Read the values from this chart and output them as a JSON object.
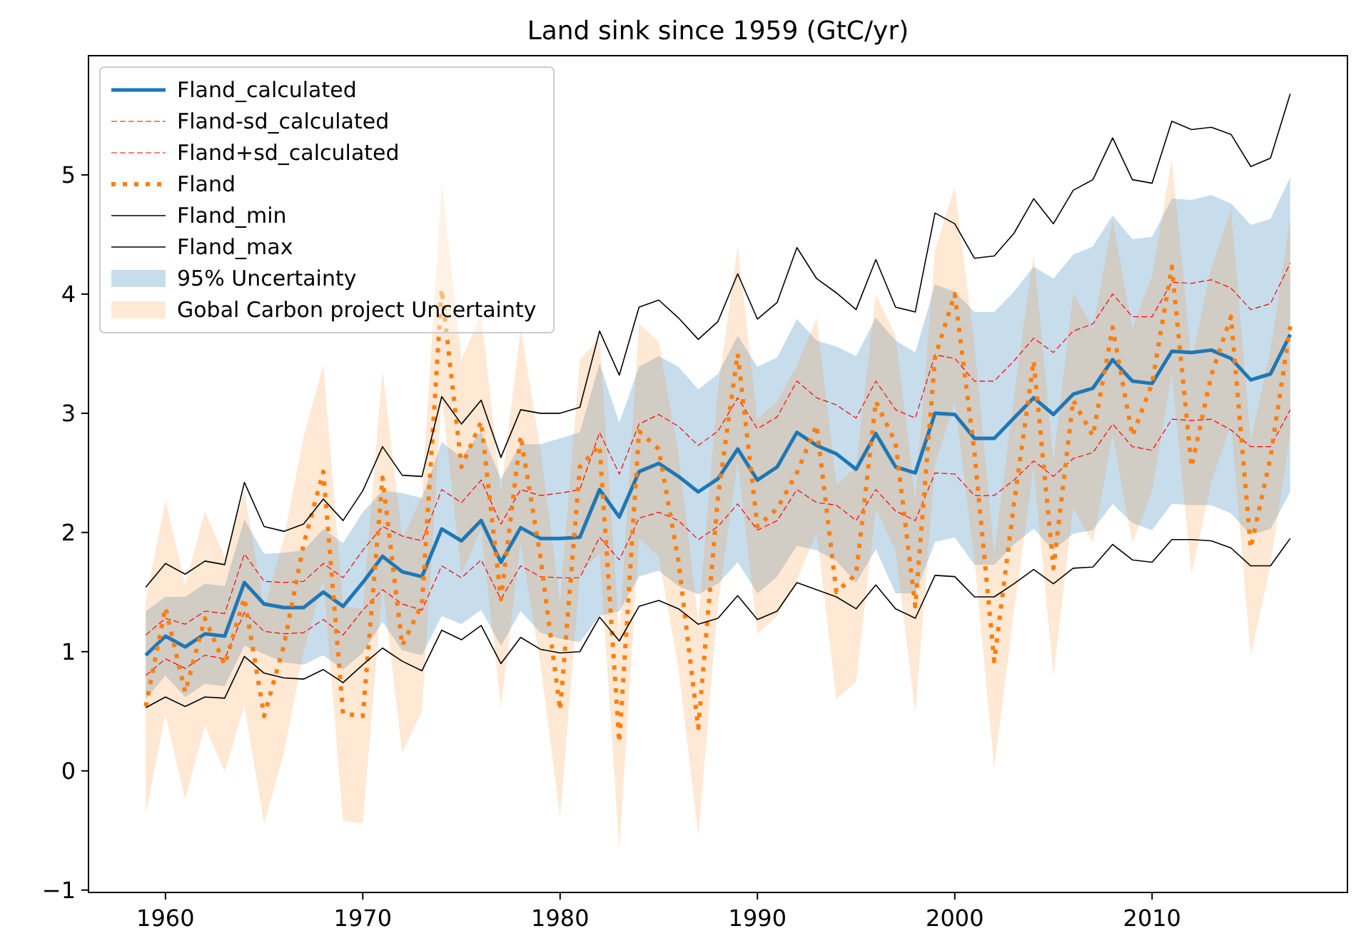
{
  "chart_data": {
    "type": "line",
    "title": "Land sink since 1959 (GtC/yr)",
    "x": [
      1959,
      1960,
      1961,
      1962,
      1963,
      1964,
      1965,
      1966,
      1967,
      1968,
      1969,
      1970,
      1971,
      1972,
      1973,
      1974,
      1975,
      1976,
      1977,
      1978,
      1979,
      1980,
      1981,
      1982,
      1983,
      1984,
      1985,
      1986,
      1987,
      1988,
      1989,
      1990,
      1991,
      1992,
      1993,
      1994,
      1995,
      1996,
      1997,
      1998,
      1999,
      2000,
      2001,
      2002,
      2003,
      2004,
      2005,
      2006,
      2007,
      2008,
      2009,
      2010,
      2011,
      2012,
      2013,
      2014,
      2015,
      2016,
      2017
    ],
    "xlim": [
      1956.1,
      2019.9
    ],
    "xticks": [
      1960,
      1970,
      1980,
      1990,
      2000,
      2010
    ],
    "ylim": [
      -1.02,
      6.0
    ],
    "yticks": [
      {
        "value": -1,
        "label": "−1"
      },
      0,
      1,
      2,
      3,
      4,
      5
    ],
    "legend": "top left",
    "annotations": [
      "95% Uncertainty",
      "Gobal Carbon project Uncertainty"
    ],
    "series": [
      {
        "name": "Fland_calculated",
        "color": "#1f77b4",
        "line_style": "solid",
        "values": [
          0.97,
          1.13,
          1.04,
          1.15,
          1.13,
          1.58,
          1.4,
          1.37,
          1.37,
          1.5,
          1.38,
          1.58,
          1.8,
          1.67,
          1.63,
          2.03,
          1.93,
          2.1,
          1.75,
          2.04,
          1.95,
          1.95,
          1.96,
          2.36,
          2.13,
          2.51,
          2.58,
          2.47,
          2.34,
          2.45,
          2.7,
          2.44,
          2.55,
          2.84,
          2.73,
          2.66,
          2.53,
          2.83,
          2.55,
          2.5,
          3.0,
          2.99,
          2.79,
          2.79,
          2.96,
          3.13,
          2.99,
          3.16,
          3.21,
          3.45,
          3.27,
          3.25,
          3.52,
          3.51,
          3.53,
          3.46,
          3.28,
          3.33,
          3.66
        ],
        "lower": [
          0.6,
          0.8,
          0.62,
          0.73,
          0.71,
          1.05,
          0.98,
          0.91,
          0.89,
          0.97,
          0.85,
          0.99,
          1.25,
          1.01,
          0.97,
          1.3,
          1.23,
          1.35,
          1.05,
          1.34,
          1.16,
          1.11,
          1.08,
          1.3,
          1.34,
          1.63,
          1.68,
          1.55,
          1.48,
          1.57,
          1.75,
          1.49,
          1.63,
          1.89,
          1.85,
          1.76,
          1.58,
          1.86,
          1.49,
          1.49,
          1.92,
          1.96,
          1.73,
          1.73,
          1.9,
          2.03,
          1.85,
          1.99,
          2.02,
          2.24,
          2.08,
          2.02,
          2.24,
          2.23,
          2.23,
          2.16,
          1.98,
          2.03,
          2.34
        ],
        "upper": [
          1.34,
          1.46,
          1.46,
          1.57,
          1.55,
          2.11,
          1.82,
          1.83,
          1.85,
          2.03,
          1.91,
          2.17,
          2.35,
          2.33,
          2.29,
          2.76,
          2.63,
          2.85,
          2.45,
          2.74,
          2.74,
          2.79,
          2.84,
          3.42,
          2.92,
          3.39,
          3.48,
          3.39,
          3.2,
          3.33,
          3.65,
          3.39,
          3.47,
          3.79,
          3.61,
          3.56,
          3.48,
          3.8,
          3.61,
          3.51,
          4.08,
          4.02,
          3.85,
          3.85,
          4.02,
          4.23,
          4.13,
          4.33,
          4.4,
          4.66,
          4.46,
          4.48,
          4.8,
          4.79,
          4.83,
          4.76,
          4.58,
          4.63,
          4.98
        ]
      },
      {
        "name": "Fland-sd_calculated",
        "color": "#ff0000",
        "line_style": "dashed",
        "values": [
          0.8,
          0.94,
          0.86,
          0.97,
          0.94,
          1.33,
          1.17,
          1.15,
          1.16,
          1.27,
          1.14,
          1.35,
          1.52,
          1.4,
          1.35,
          1.72,
          1.62,
          1.77,
          1.44,
          1.72,
          1.63,
          1.62,
          1.62,
          1.96,
          1.77,
          2.12,
          2.17,
          2.1,
          1.94,
          2.05,
          2.24,
          2.02,
          2.1,
          2.36,
          2.25,
          2.23,
          2.1,
          2.36,
          2.18,
          2.1,
          2.5,
          2.49,
          2.31,
          2.31,
          2.44,
          2.6,
          2.47,
          2.62,
          2.67,
          2.91,
          2.72,
          2.69,
          2.95,
          2.94,
          2.95,
          2.86,
          2.72,
          2.72,
          3.03
        ]
      },
      {
        "name": "Fland+sd_calculated",
        "color": "#ff0000",
        "line_style": "dashed",
        "values": [
          1.14,
          1.28,
          1.23,
          1.34,
          1.32,
          1.82,
          1.59,
          1.58,
          1.59,
          1.74,
          1.62,
          1.85,
          2.05,
          1.97,
          1.93,
          2.36,
          2.25,
          2.44,
          2.07,
          2.36,
          2.31,
          2.33,
          2.36,
          2.84,
          2.49,
          2.91,
          2.99,
          2.89,
          2.73,
          2.85,
          3.13,
          2.87,
          2.97,
          3.27,
          3.13,
          3.07,
          2.96,
          3.27,
          3.03,
          2.96,
          3.49,
          3.46,
          3.27,
          3.27,
          3.44,
          3.63,
          3.51,
          3.69,
          3.75,
          4.0,
          3.81,
          3.81,
          4.1,
          4.09,
          4.12,
          4.05,
          3.87,
          3.92,
          4.26
        ]
      },
      {
        "name": "Fland",
        "color": "#ff7f0e",
        "line_style": "dotted",
        "values": [
          0.54,
          1.37,
          0.66,
          1.28,
          0.89,
          1.45,
          0.46,
          1.05,
          1.9,
          2.51,
          0.48,
          0.46,
          2.46,
          1.05,
          1.4,
          4.04,
          2.55,
          2.93,
          1.44,
          2.81,
          1.8,
          0.51,
          2.55,
          2.73,
          0.24,
          2.85,
          2.7,
          1.76,
          0.36,
          2.3,
          3.5,
          2.05,
          2.2,
          2.5,
          2.9,
          1.5,
          1.65,
          3.1,
          2.75,
          1.38,
          3.47,
          4.0,
          2.67,
          0.92,
          2.24,
          3.44,
          1.7,
          3.11,
          2.81,
          3.72,
          2.81,
          3.25,
          4.23,
          2.55,
          3.32,
          3.81,
          1.87,
          2.63,
          3.73
        ],
        "lower": [
          -0.36,
          0.47,
          -0.24,
          0.38,
          -0.01,
          0.55,
          -0.44,
          0.15,
          1.0,
          1.61,
          -0.42,
          -0.44,
          1.56,
          0.15,
          0.5,
          3.14,
          1.65,
          2.03,
          0.54,
          1.91,
          0.9,
          -0.39,
          1.65,
          1.83,
          -0.66,
          1.95,
          1.8,
          0.86,
          -0.54,
          1.4,
          2.6,
          1.15,
          1.3,
          1.6,
          2.0,
          0.6,
          0.75,
          2.2,
          1.85,
          0.48,
          2.57,
          3.1,
          1.77,
          0.02,
          1.34,
          2.54,
          0.8,
          2.21,
          1.91,
          2.82,
          1.91,
          2.35,
          3.33,
          1.65,
          2.42,
          2.91,
          0.97,
          1.73,
          2.83
        ],
        "upper": [
          1.44,
          2.27,
          1.56,
          2.18,
          1.79,
          2.35,
          1.36,
          1.95,
          2.8,
          3.41,
          1.38,
          1.36,
          3.36,
          1.95,
          2.3,
          4.94,
          3.45,
          3.83,
          2.34,
          3.71,
          2.7,
          1.41,
          3.45,
          3.63,
          1.14,
          3.75,
          3.6,
          2.66,
          1.26,
          3.2,
          4.4,
          2.95,
          3.1,
          3.4,
          3.8,
          2.4,
          2.55,
          4.0,
          3.65,
          2.28,
          4.37,
          4.9,
          3.57,
          1.82,
          3.14,
          4.34,
          2.6,
          4.01,
          3.71,
          4.62,
          3.71,
          4.15,
          5.13,
          3.45,
          4.22,
          4.71,
          2.77,
          3.53,
          4.63
        ]
      },
      {
        "name": "Fland_min",
        "color": "#000000",
        "line_style": "solid",
        "values": [
          0.53,
          0.62,
          0.54,
          0.62,
          0.61,
          0.96,
          0.82,
          0.78,
          0.77,
          0.85,
          0.74,
          0.89,
          1.03,
          0.92,
          0.84,
          1.18,
          1.1,
          1.22,
          0.9,
          1.12,
          1.02,
          0.99,
          1.0,
          1.29,
          1.09,
          1.38,
          1.43,
          1.36,
          1.23,
          1.28,
          1.47,
          1.27,
          1.34,
          1.58,
          1.52,
          1.46,
          1.36,
          1.56,
          1.36,
          1.28,
          1.64,
          1.63,
          1.46,
          1.46,
          1.57,
          1.69,
          1.57,
          1.7,
          1.71,
          1.9,
          1.77,
          1.75,
          1.94,
          1.94,
          1.93,
          1.87,
          1.72,
          1.72,
          1.95
        ]
      },
      {
        "name": "Fland_max",
        "color": "#000000",
        "line_style": "solid",
        "values": [
          1.54,
          1.74,
          1.65,
          1.76,
          1.73,
          2.42,
          2.05,
          2.01,
          2.07,
          2.28,
          2.1,
          2.35,
          2.72,
          2.48,
          2.47,
          3.14,
          2.91,
          3.11,
          2.63,
          3.03,
          3.0,
          3.0,
          3.05,
          3.69,
          3.32,
          3.89,
          3.95,
          3.8,
          3.62,
          3.77,
          4.17,
          3.79,
          3.93,
          4.39,
          4.13,
          4.01,
          3.87,
          4.29,
          3.89,
          3.85,
          4.68,
          4.59,
          4.3,
          4.32,
          4.51,
          4.8,
          4.59,
          4.87,
          4.96,
          5.31,
          4.96,
          4.93,
          5.45,
          5.38,
          5.4,
          5.34,
          5.07,
          5.14,
          5.68
        ]
      }
    ]
  }
}
